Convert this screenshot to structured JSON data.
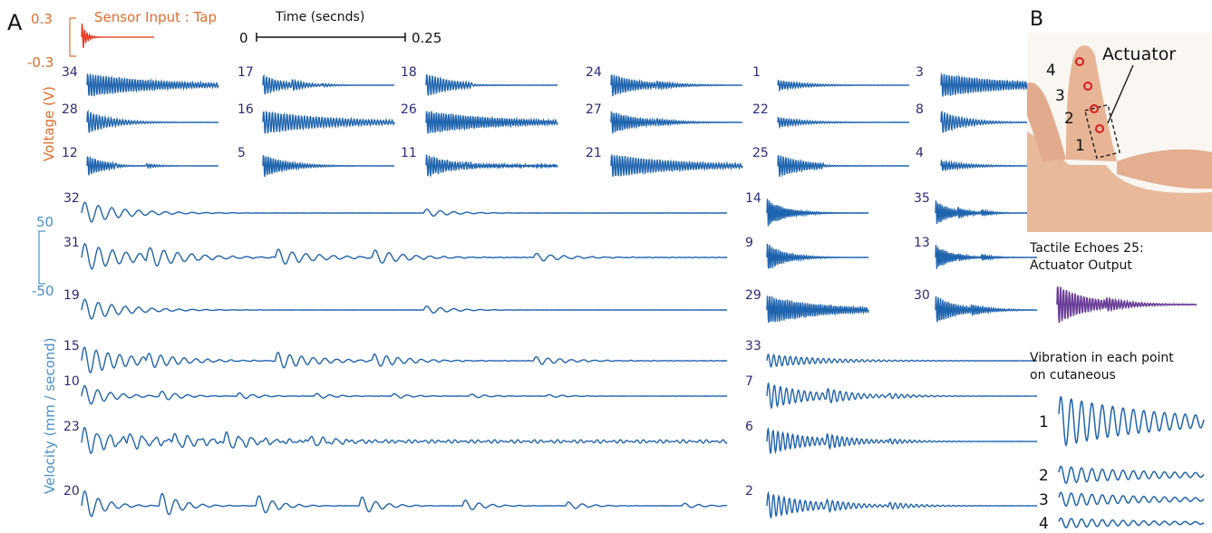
{
  "panels": {
    "a_letter": "A",
    "b_letter": "B"
  },
  "colors": {
    "trace": "#1f64ae",
    "sensor": "#e8331c",
    "axis_orange": "#e06d2c",
    "axis_blue": "#4a90c8",
    "label_ink": "#2d2a7a",
    "echo": "#6a3e98",
    "point": "#d91c1c"
  },
  "sensor": {
    "label": "Sensor Input : Tap",
    "ymax": "0.3",
    "ymin": "-0.3"
  },
  "time_scale": {
    "title": "Time (secnds)",
    "start": "0",
    "end": "0.25"
  },
  "voltage_axis_label": "Voltage (V)",
  "velocity_axis": {
    "label": "Velocity (mm / second)",
    "ymax": "50",
    "ymin": "-50"
  },
  "panel_b": {
    "actuator_label": "Actuator",
    "finger_points": [
      "1",
      "2",
      "3",
      "4"
    ],
    "echo_title_line1": "Tactile Echoes 25:",
    "echo_title_line2": "Actuator Output",
    "vibration_title_line1": "Vibration in each point",
    "vibration_title_line2": "on cutaneous"
  },
  "chart_data": {
    "type": "line",
    "title": "Sensor Input : Tap",
    "x_label": "Time (secnds)",
    "x_range": [
      0,
      0.25
    ],
    "voltage_axis": {
      "label": "Voltage (V)",
      "range": [
        -0.3,
        0.3
      ]
    },
    "velocity_axis": {
      "label": "Velocity (mm / second)",
      "range": [
        -50,
        50
      ]
    },
    "short_traces": [
      {
        "name": "34",
        "profile": "long-ring"
      },
      {
        "name": "17",
        "profile": "repeated"
      },
      {
        "name": "18",
        "profile": "single-echo"
      },
      {
        "name": "24",
        "profile": "single-echo"
      },
      {
        "name": "1",
        "profile": "weak"
      },
      {
        "name": "3",
        "profile": "long-ring"
      },
      {
        "name": "28",
        "profile": "short"
      },
      {
        "name": "16",
        "profile": "long-ring"
      },
      {
        "name": "26",
        "profile": "long-ring"
      },
      {
        "name": "27",
        "profile": "single-echo"
      },
      {
        "name": "22",
        "profile": "weak"
      },
      {
        "name": "8",
        "profile": "short"
      },
      {
        "name": "12",
        "profile": "repeated"
      },
      {
        "name": "5",
        "profile": "short"
      },
      {
        "name": "11",
        "profile": "noisy"
      },
      {
        "name": "21",
        "profile": "long-ring"
      },
      {
        "name": "25",
        "profile": "single-echo"
      },
      {
        "name": "4",
        "profile": "weak"
      }
    ],
    "long_traces": [
      {
        "name": "32",
        "profile": "sparse"
      },
      {
        "name": "31",
        "profile": "dense"
      },
      {
        "name": "19",
        "profile": "sparse"
      },
      {
        "name": "15",
        "profile": "dense"
      },
      {
        "name": "10",
        "profile": "periodic"
      },
      {
        "name": "23",
        "profile": "dense-noisy"
      },
      {
        "name": "20",
        "profile": "periodic-strong"
      }
    ],
    "mid_traces": [
      {
        "name": "14",
        "profile": "short"
      },
      {
        "name": "35",
        "profile": "repeated"
      },
      {
        "name": "9",
        "profile": "short"
      },
      {
        "name": "13",
        "profile": "repeated"
      },
      {
        "name": "29",
        "profile": "long-ring"
      },
      {
        "name": "30",
        "profile": "single-echo"
      },
      {
        "name": "33",
        "profile": "weak"
      },
      {
        "name": "7",
        "profile": "repeated"
      },
      {
        "name": "6",
        "profile": "repeated"
      },
      {
        "name": "2",
        "profile": "repeated"
      }
    ],
    "cutaneous_points": [
      {
        "name": "1",
        "amplitude": 1.0
      },
      {
        "name": "2",
        "amplitude": 0.35
      },
      {
        "name": "3",
        "amplitude": 0.28
      },
      {
        "name": "4",
        "amplitude": 0.2
      }
    ]
  }
}
